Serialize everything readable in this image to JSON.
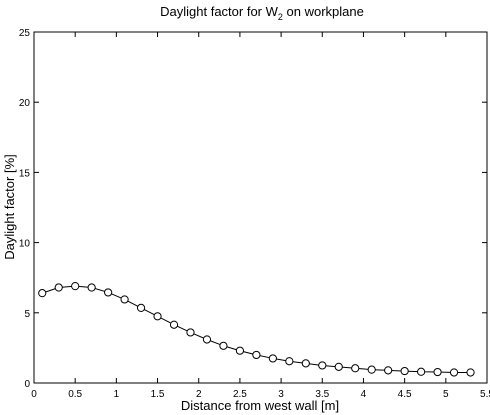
{
  "chart_data": {
    "type": "line",
    "title": {
      "prefix": "Daylight factor for W",
      "subscript": "2",
      "suffix": " on workplane"
    },
    "xlabel": "Distance from west wall [m]",
    "ylabel": "Daylight factor [%]",
    "xlim": [
      0,
      5.5
    ],
    "ylim": [
      0,
      25
    ],
    "xticks": [
      0,
      0.5,
      1,
      1.5,
      2,
      2.5,
      3,
      3.5,
      4,
      4.5,
      5,
      5.5
    ],
    "xtick_labels": [
      "0",
      "0.5",
      "1",
      "1.5",
      "2",
      "2.5",
      "3",
      "3.5",
      "4",
      "4.5",
      "5",
      "5.5"
    ],
    "yticks": [
      0,
      5,
      10,
      15,
      20,
      25
    ],
    "ytick_labels": [
      "0",
      "5",
      "10",
      "15",
      "20",
      "25"
    ],
    "grid": false,
    "marker": "circle",
    "line_color": "#000000",
    "series": [
      {
        "x": [
          0.1,
          0.3,
          0.5,
          0.7,
          0.9,
          1.1,
          1.3,
          1.5,
          1.7,
          1.9,
          2.1,
          2.3,
          2.5,
          2.7,
          2.9,
          3.1,
          3.3,
          3.5,
          3.7,
          3.9,
          4.1,
          4.3,
          4.5,
          4.7,
          4.9,
          5.1,
          5.3
        ],
        "y": [
          6.4,
          6.8,
          6.9,
          6.8,
          6.45,
          5.95,
          5.35,
          4.75,
          4.15,
          3.6,
          3.1,
          2.65,
          2.3,
          2.0,
          1.75,
          1.55,
          1.4,
          1.25,
          1.15,
          1.05,
          0.95,
          0.9,
          0.85,
          0.8,
          0.78,
          0.75,
          0.75
        ]
      }
    ]
  }
}
